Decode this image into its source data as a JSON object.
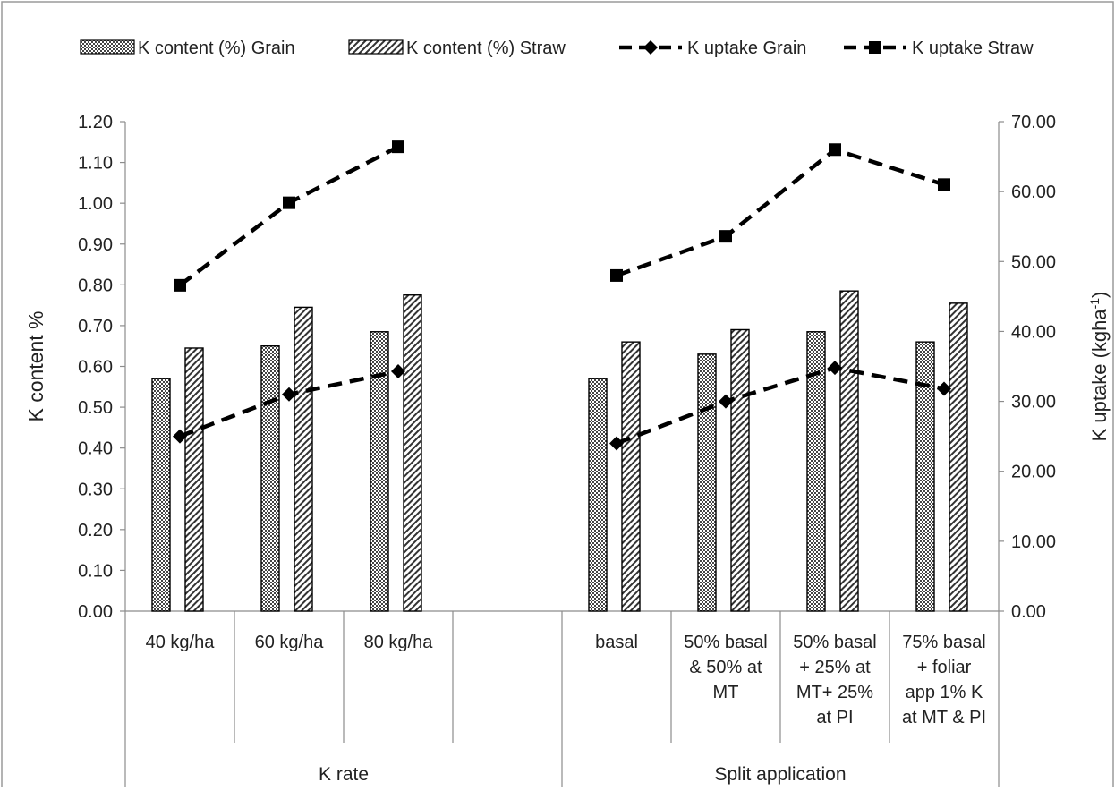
{
  "chart_data": {
    "type": "bar",
    "title": "",
    "legend_position": "top",
    "grid": false,
    "categories": [
      "40 kg/ha",
      "60 kg/ha",
      "80 kg/ha",
      "",
      "basal",
      "50% basal & 50% at MT",
      "50% basal + 25% at MT+ 25% at PI",
      "75% basal + foliar app 1% K at MT & PI"
    ],
    "category_lines": [
      [
        "40 kg/ha"
      ],
      [
        "60 kg/ha"
      ],
      [
        "80 kg/ha"
      ],
      [],
      [
        "basal"
      ],
      [
        "50% basal",
        "& 50% at",
        "MT"
      ],
      [
        "50% basal",
        "+ 25% at",
        "MT+  25%",
        "at PI"
      ],
      [
        "75% basal",
        "+ foliar",
        "app 1% K",
        "at MT & PI"
      ]
    ],
    "groups": [
      {
        "label": "K rate",
        "span": [
          0,
          3
        ]
      },
      {
        "label": "Split application",
        "span": [
          4,
          7
        ]
      }
    ],
    "y_left": {
      "label": "K content %",
      "range": [
        0,
        1.2
      ],
      "ticks": [
        "0.00",
        "0.10",
        "0.20",
        "0.30",
        "0.40",
        "0.50",
        "0.60",
        "0.70",
        "0.80",
        "0.90",
        "1.00",
        "1.10",
        "1.20"
      ]
    },
    "y_right": {
      "label_main": "K uptake (kgha",
      "label_sup": "-1",
      "label_end": ")",
      "range": [
        0,
        70
      ],
      "ticks": [
        "0.00",
        "10.00",
        "20.00",
        "30.00",
        "40.00",
        "50.00",
        "60.00",
        "70.00"
      ]
    },
    "series": [
      {
        "name": "K content (%) Grain",
        "kind": "bar",
        "pattern": "dots",
        "axis": "left",
        "values": [
          0.57,
          0.65,
          0.685,
          null,
          0.57,
          0.63,
          0.685,
          0.66
        ]
      },
      {
        "name": "K content (%) Straw",
        "kind": "bar",
        "pattern": "hatch",
        "axis": "left",
        "values": [
          0.645,
          0.745,
          0.775,
          null,
          0.66,
          0.69,
          0.785,
          0.755
        ]
      },
      {
        "name": "K uptake Grain",
        "kind": "line",
        "marker": "diamond",
        "axis": "right",
        "values": [
          25.0,
          31.0,
          34.3,
          null,
          24.0,
          30.0,
          34.8,
          31.8
        ]
      },
      {
        "name": "K uptake Straw",
        "kind": "line",
        "marker": "square",
        "axis": "right",
        "values": [
          46.6,
          58.4,
          66.4,
          null,
          48.0,
          53.6,
          66.0,
          61.0
        ]
      }
    ]
  }
}
